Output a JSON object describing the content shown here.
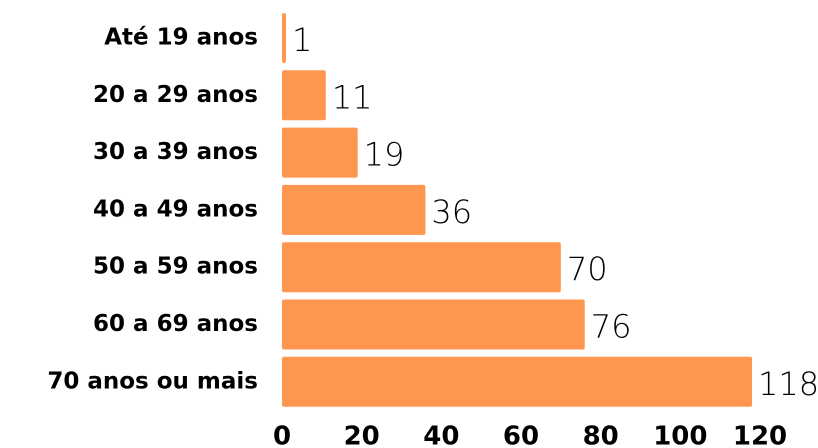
{
  "chart_data": {
    "type": "bar",
    "orientation": "horizontal",
    "categories": [
      "Até 19 anos",
      "20 a 29 anos",
      "30 a 39 anos",
      "40 a 49 anos",
      "50 a 59 anos",
      "60 a 69 anos",
      "70 anos ou mais"
    ],
    "values": [
      1,
      11,
      19,
      36,
      70,
      76,
      118
    ],
    "color": "#ff9650",
    "xlim": [
      0,
      120
    ],
    "xticks": [
      0,
      20,
      40,
      60,
      80,
      100,
      120
    ],
    "grid": false
  }
}
